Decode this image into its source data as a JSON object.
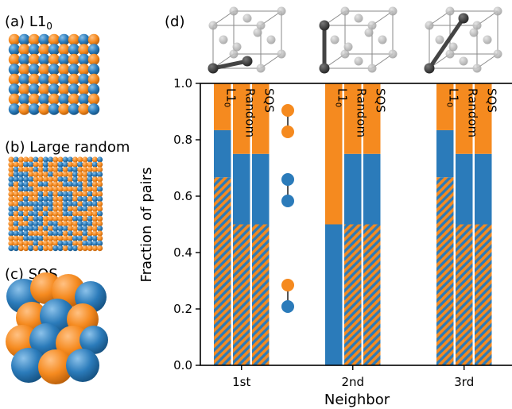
{
  "panels": {
    "a": {
      "tag": "(a)",
      "name": "L1",
      "sub": "0"
    },
    "b": {
      "tag": "(b)",
      "name": "Large random"
    },
    "c": {
      "tag": "(c)",
      "name": "SQS"
    },
    "d": {
      "tag": "(d)"
    }
  },
  "colors": {
    "orange": "#f58a1f",
    "blue": "#2b7bba",
    "wire": "#8a8a8a",
    "atom_gray": "#b3b3b3",
    "atom_dark": "#303030"
  },
  "chart_data": {
    "type": "bar",
    "stacked": true,
    "xlabel": "Neighbor",
    "ylabel": "Fraction of pairs",
    "ylim": [
      0,
      1.0
    ],
    "yticks": [
      "0.0",
      "0.2",
      "0.4",
      "0.6",
      "0.8",
      "1.0"
    ],
    "groups": [
      "1st",
      "2nd",
      "3rd"
    ],
    "bar_labels": [
      {
        "main": "L1",
        "sub": "0"
      },
      {
        "main": "Random"
      },
      {
        "main": "SQS"
      }
    ],
    "segments": [
      "orange-blue",
      "blue-blue",
      "orange-orange"
    ],
    "values": [
      [
        [
          0.667,
          0.167,
          0.167
        ],
        [
          0.5,
          0.25,
          0.25
        ],
        [
          0.5,
          0.25,
          0.25
        ]
      ],
      [
        [
          0.0,
          0.5,
          0.5
        ],
        [
          0.5,
          0.25,
          0.25
        ],
        [
          0.5,
          0.25,
          0.25
        ]
      ],
      [
        [
          0.667,
          0.167,
          0.167
        ],
        [
          0.5,
          0.25,
          0.25
        ],
        [
          0.5,
          0.25,
          0.25
        ]
      ]
    ]
  }
}
